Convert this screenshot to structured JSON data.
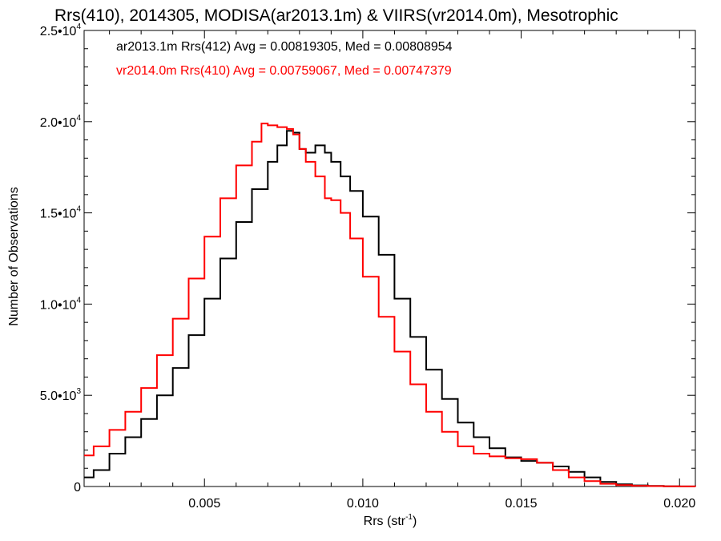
{
  "chart_data": {
    "type": "line",
    "title": "Rrs(410), 2014305, MODISA(ar2013.1m) & VIIRS(vr2014.0m), Mesotrophic",
    "xlabel": "Rrs (str",
    "xlabel_sup": "-1",
    "xlabel_end": ")",
    "ylabel": "Number of Observations",
    "xlim": [
      0.0012,
      0.0205
    ],
    "ylim": [
      0,
      25000
    ],
    "grid": false,
    "legend_position": "top-left",
    "x_ticks": [
      {
        "value": 0.005,
        "label": "0.005"
      },
      {
        "value": 0.01,
        "label": "0.010"
      },
      {
        "value": 0.015,
        "label": "0.015"
      },
      {
        "value": 0.02,
        "label": "0.020"
      }
    ],
    "y_ticks": [
      {
        "value": 0,
        "label": "0",
        "exp": ""
      },
      {
        "value": 5000,
        "label": "5.0•10",
        "exp": "3"
      },
      {
        "value": 10000,
        "label": "1.0•10",
        "exp": "4"
      },
      {
        "value": 15000,
        "label": "1.5•10",
        "exp": "4"
      },
      {
        "value": 20000,
        "label": "2.0•10",
        "exp": "4"
      },
      {
        "value": 25000,
        "label": "2.5•10",
        "exp": "4"
      }
    ],
    "series": [
      {
        "name": "ar2013.1m Rrs(412)",
        "legend": "ar2013.1m Rrs(412) Avg = 0.00819305, Med = 0.00808954",
        "color": "#000000",
        "x": [
          0.0012,
          0.0015,
          0.002,
          0.0025,
          0.003,
          0.0035,
          0.004,
          0.0045,
          0.005,
          0.0055,
          0.006,
          0.0065,
          0.007,
          0.0073,
          0.0076,
          0.0078,
          0.008,
          0.0082,
          0.0085,
          0.0088,
          0.009,
          0.0093,
          0.0096,
          0.01,
          0.0105,
          0.011,
          0.0115,
          0.012,
          0.0125,
          0.013,
          0.0135,
          0.014,
          0.0145,
          0.015,
          0.0155,
          0.016,
          0.0165,
          0.017,
          0.0175,
          0.018,
          0.0185,
          0.019,
          0.0195,
          0.02,
          0.0205
        ],
        "y": [
          500,
          900,
          1800,
          2700,
          3700,
          5000,
          6500,
          8300,
          10300,
          12500,
          14500,
          16300,
          17800,
          18700,
          19500,
          19400,
          18500,
          18300,
          18700,
          18300,
          17800,
          17000,
          16200,
          14800,
          12700,
          10300,
          8200,
          6400,
          4800,
          3500,
          2700,
          2100,
          1600,
          1400,
          1300,
          1100,
          800,
          500,
          250,
          120,
          60,
          30,
          15,
          5,
          0
        ]
      },
      {
        "name": "vr2014.0m Rrs(410)",
        "legend": "vr2014.0m Rrs(410) Avg = 0.00759067, Med = 0.00747379",
        "color": "#ff0000",
        "x": [
          0.0012,
          0.0015,
          0.002,
          0.0025,
          0.003,
          0.0035,
          0.004,
          0.0045,
          0.005,
          0.0055,
          0.006,
          0.0065,
          0.0068,
          0.007,
          0.0073,
          0.0076,
          0.0078,
          0.008,
          0.0082,
          0.0085,
          0.0088,
          0.009,
          0.0093,
          0.0096,
          0.01,
          0.0105,
          0.011,
          0.0115,
          0.012,
          0.0125,
          0.013,
          0.0135,
          0.014,
          0.0145,
          0.015,
          0.0155,
          0.016,
          0.0165,
          0.017,
          0.0175,
          0.018,
          0.0185,
          0.019,
          0.0195,
          0.02,
          0.0205
        ],
        "y": [
          1700,
          2200,
          3100,
          4100,
          5400,
          7200,
          9200,
          11400,
          13700,
          15800,
          17600,
          18900,
          19900,
          19800,
          19700,
          19600,
          19300,
          18500,
          17800,
          17000,
          15800,
          15700,
          15000,
          13600,
          11500,
          9300,
          7400,
          5600,
          4100,
          3000,
          2200,
          1800,
          1650,
          1550,
          1500,
          1300,
          900,
          500,
          300,
          150,
          80,
          40,
          20,
          10,
          5,
          0
        ]
      }
    ]
  }
}
